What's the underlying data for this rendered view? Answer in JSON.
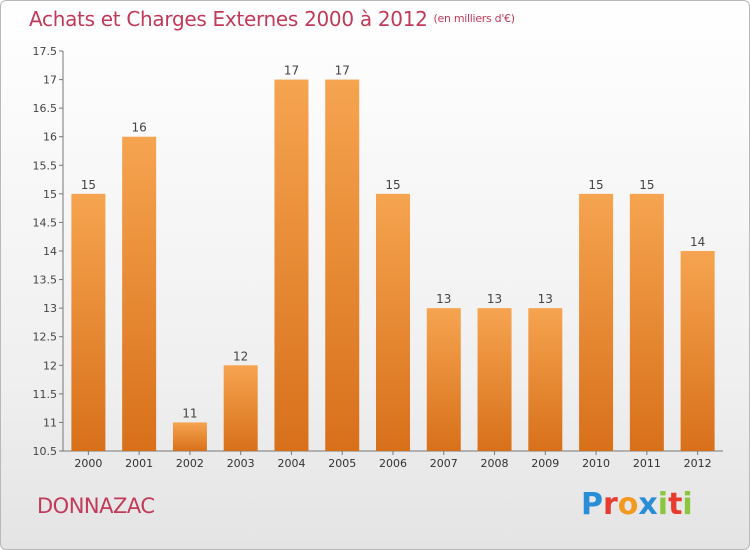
{
  "header": {
    "title": "Achats et Charges Externes 2000 à 2012",
    "subtitle": "(en milliers d'€)"
  },
  "footer": {
    "place": "DONNAZAC",
    "brand": "Proxiti",
    "brand_colors": [
      "#2a8ed6",
      "#e83a2f",
      "#f29a1f",
      "#2a8ed6",
      "#8cc63f",
      "#e83a2f",
      "#8cc63f"
    ]
  },
  "colors": {
    "bar_light": "#f6a14d",
    "bar_dark": "#d96f16",
    "title": "#c23a5a",
    "axis": "#666666"
  },
  "chart_data": {
    "type": "bar",
    "title": "Achats et Charges Externes 2000 à 2012",
    "ylabel": "en milliers d'€",
    "xlabel": "",
    "categories": [
      "2000",
      "2001",
      "2002",
      "2003",
      "2004",
      "2005",
      "2006",
      "2007",
      "2008",
      "2009",
      "2010",
      "2011",
      "2012"
    ],
    "values": [
      15,
      16,
      11,
      12,
      17,
      17,
      15,
      13,
      13,
      13,
      15,
      15,
      14
    ],
    "data_labels": [
      "15",
      "16",
      "11",
      "12",
      "17",
      "17",
      "15",
      "13",
      "13",
      "13",
      "15",
      "15",
      "14"
    ],
    "ylim": [
      10.5,
      17.5
    ],
    "yticks": [
      10.5,
      11,
      11.5,
      12,
      12.5,
      13,
      13.5,
      14,
      14.5,
      15,
      15.5,
      16,
      16.5,
      17,
      17.5
    ],
    "ytick_labels": [
      "10.5",
      "11",
      "11.5",
      "12",
      "12.5",
      "13",
      "13.5",
      "14",
      "14.5",
      "15",
      "15.5",
      "16",
      "16.5",
      "17",
      "17.5"
    ],
    "grid": false,
    "legend": "none"
  }
}
